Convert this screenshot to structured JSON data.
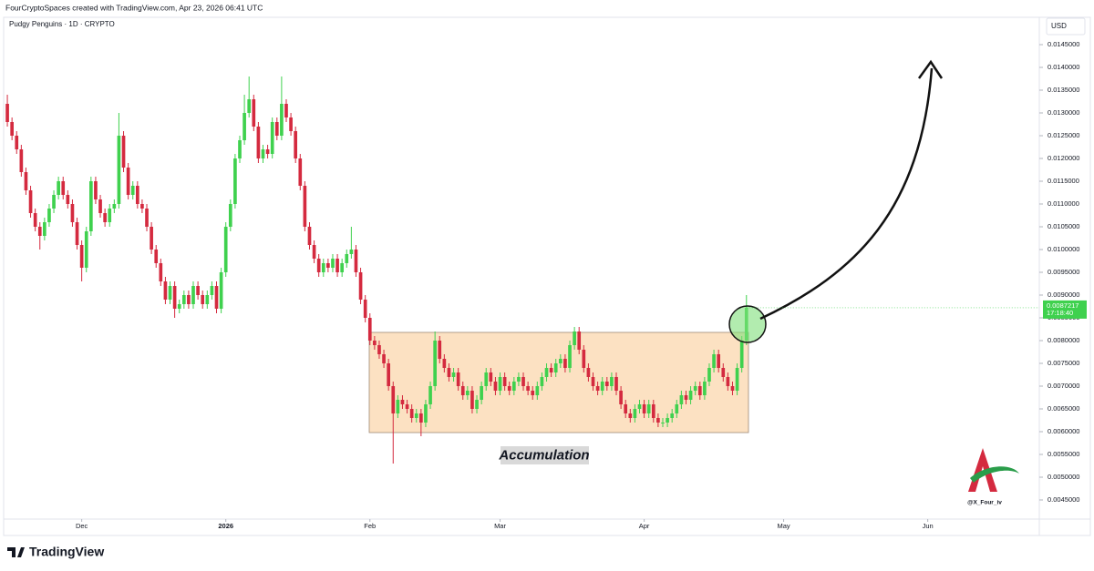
{
  "header": "FourCryptoSpaces created with TradingView.com, Apr 23, 2026 06:41 UTC",
  "footer": "TradingView",
  "chart_data": {
    "type": "candlestick",
    "title": "Pudgy Penguins · 1D · CRYPTO",
    "currency": "USD",
    "annotation": "Accumulation",
    "watermark": "@X_Four_iv",
    "up_color": "#3fd14e",
    "down_color": "#d42a3f",
    "last_price": {
      "value": 0.0087217,
      "label": "0.0087217"
    },
    "countdown": "17:18:40",
    "xlim": [
      -0.6,
      222
    ],
    "xticks": [
      {
        "value": 16,
        "label": "Dec"
      },
      {
        "value": 47,
        "label": "2026"
      },
      {
        "value": 78,
        "label": "Feb"
      },
      {
        "value": 106,
        "label": "Mar"
      },
      {
        "value": 137,
        "label": "Apr"
      },
      {
        "value": 167,
        "label": "May"
      },
      {
        "value": 198,
        "label": "Jun"
      }
    ],
    "ylim": [
      0.00408,
      0.0151
    ],
    "yticks": [
      {
        "value": 0.0045,
        "label": "0.0045000"
      },
      {
        "value": 0.005,
        "label": "0.0050000"
      },
      {
        "value": 0.0055,
        "label": "0.0055000"
      },
      {
        "value": 0.006,
        "label": "0.0060000"
      },
      {
        "value": 0.0065,
        "label": "0.0065000"
      },
      {
        "value": 0.007,
        "label": "0.0070000"
      },
      {
        "value": 0.0075,
        "label": "0.0075000"
      },
      {
        "value": 0.008,
        "label": "0.0080000"
      },
      {
        "value": 0.0085,
        "label": "0.0085000"
      },
      {
        "value": 0.009,
        "label": "0.0090000"
      },
      {
        "value": 0.0095,
        "label": "0.0095000"
      },
      {
        "value": 0.01,
        "label": "0.0100000"
      },
      {
        "value": 0.0105,
        "label": "0.0105000"
      },
      {
        "value": 0.011,
        "label": "0.0110000"
      },
      {
        "value": 0.0115,
        "label": "0.0115000"
      },
      {
        "value": 0.012,
        "label": "0.0120000"
      },
      {
        "value": 0.0125,
        "label": "0.0125000"
      },
      {
        "value": 0.013,
        "label": "0.0130000"
      },
      {
        "value": 0.0135,
        "label": "0.0135000"
      },
      {
        "value": 0.014,
        "label": "0.0140000"
      },
      {
        "value": 0.0145,
        "label": "0.0145000"
      }
    ],
    "open": [
      0.0132,
      0.0128,
      0.0125,
      0.0122,
      0.0117,
      0.0113,
      0.0108,
      0.0105,
      0.0103,
      0.0106,
      0.0109,
      0.0112,
      0.0115,
      0.0112,
      0.011,
      0.0106,
      0.0101,
      0.0096,
      0.0104,
      0.0115,
      0.0111,
      0.0108,
      0.0106,
      0.0109,
      0.011,
      0.0125,
      0.0118,
      0.0112,
      0.0114,
      0.011,
      0.0109,
      0.0105,
      0.01,
      0.0097,
      0.0093,
      0.0089,
      0.0092,
      0.0087,
      0.0088,
      0.009,
      0.0088,
      0.0092,
      0.009,
      0.0088,
      0.009,
      0.0092,
      0.0087,
      0.0095,
      0.0105,
      0.011,
      0.012,
      0.0124,
      0.013,
      0.0133,
      0.0127,
      0.012,
      0.0122,
      0.0121,
      0.0128,
      0.0125,
      0.0132,
      0.0129,
      0.0126,
      0.012,
      0.0114,
      0.0105,
      0.0101,
      0.0098,
      0.0095,
      0.0097,
      0.0096,
      0.0098,
      0.0095,
      0.0097,
      0.0099,
      0.01,
      0.0095,
      0.0089,
      0.0085,
      0.008,
      0.0079,
      0.0077,
      0.0075,
      0.007,
      0.0064,
      0.0067,
      0.0066,
      0.0065,
      0.0063,
      0.0064,
      0.0062,
      0.0066,
      0.007,
      0.008,
      0.0076,
      0.0074,
      0.0072,
      0.0073,
      0.007,
      0.0068,
      0.0069,
      0.0065,
      0.0067,
      0.007,
      0.0073,
      0.0071,
      0.0069,
      0.0072,
      0.007,
      0.0069,
      0.0071,
      0.0072,
      0.007,
      0.0069,
      0.0068,
      0.007,
      0.0072,
      0.0074,
      0.0073,
      0.0075,
      0.0076,
      0.0074,
      0.0079,
      0.0082,
      0.0078,
      0.0074,
      0.0072,
      0.007,
      0.0069,
      0.0071,
      0.007,
      0.0072,
      0.0069,
      0.0066,
      0.0064,
      0.0063,
      0.0065,
      0.0066,
      0.0064,
      0.0066,
      0.0063,
      0.0062,
      0.0062,
      0.0063,
      0.0064,
      0.0066,
      0.0068,
      0.0067,
      0.0069,
      0.007,
      0.0068,
      0.0071,
      0.0074,
      0.0077,
      0.0074,
      0.0072,
      0.007,
      0.0069,
      0.0074,
      0.008
    ],
    "high": [
      0.0134,
      0.0129,
      0.0126,
      0.0123,
      0.0118,
      0.0114,
      0.0109,
      0.0106,
      0.0107,
      0.011,
      0.0113,
      0.0116,
      0.0116,
      0.0113,
      0.0111,
      0.0107,
      0.0102,
      0.0105,
      0.0116,
      0.0116,
      0.0112,
      0.0109,
      0.011,
      0.0111,
      0.013,
      0.0126,
      0.0119,
      0.0115,
      0.0115,
      0.0111,
      0.011,
      0.0106,
      0.0101,
      0.0098,
      0.0094,
      0.0093,
      0.0093,
      0.0089,
      0.0091,
      0.0091,
      0.0093,
      0.0093,
      0.0091,
      0.0091,
      0.0093,
      0.0093,
      0.0096,
      0.0106,
      0.0111,
      0.0121,
      0.0125,
      0.0134,
      0.0138,
      0.0134,
      0.0128,
      0.0123,
      0.0123,
      0.0129,
      0.0129,
      0.0138,
      0.0133,
      0.013,
      0.0127,
      0.0121,
      0.0115,
      0.0106,
      0.0102,
      0.0099,
      0.0098,
      0.0098,
      0.0099,
      0.0099,
      0.0098,
      0.01,
      0.0105,
      0.0101,
      0.0096,
      0.009,
      0.0086,
      0.0081,
      0.008,
      0.0078,
      0.0076,
      0.0071,
      0.0068,
      0.0068,
      0.0067,
      0.0066,
      0.0065,
      0.0065,
      0.0067,
      0.0071,
      0.0082,
      0.0081,
      0.0077,
      0.0075,
      0.0074,
      0.0074,
      0.0071,
      0.007,
      0.007,
      0.0068,
      0.0071,
      0.0074,
      0.0074,
      0.0072,
      0.0073,
      0.0073,
      0.0071,
      0.0072,
      0.0073,
      0.0073,
      0.0071,
      0.007,
      0.0071,
      0.0073,
      0.0075,
      0.0075,
      0.0076,
      0.0077,
      0.0077,
      0.008,
      0.0083,
      0.0083,
      0.0079,
      0.0075,
      0.0073,
      0.0071,
      0.0072,
      0.0072,
      0.0073,
      0.0073,
      0.007,
      0.0067,
      0.0065,
      0.0066,
      0.0067,
      0.0067,
      0.0067,
      0.0067,
      0.0064,
      0.0063,
      0.0064,
      0.0065,
      0.0067,
      0.0069,
      0.0069,
      0.007,
      0.0071,
      0.0071,
      0.0072,
      0.0075,
      0.0078,
      0.0078,
      0.0075,
      0.0073,
      0.0071,
      0.0075,
      0.0081,
      0.009
    ],
    "low": [
      0.0127,
      0.0124,
      0.0121,
      0.0116,
      0.0112,
      0.0107,
      0.0104,
      0.01,
      0.0102,
      0.0105,
      0.0108,
      0.0111,
      0.0111,
      0.0109,
      0.0105,
      0.01,
      0.0093,
      0.0095,
      0.0103,
      0.011,
      0.0107,
      0.0105,
      0.0105,
      0.0108,
      0.0109,
      0.0117,
      0.0111,
      0.0111,
      0.0109,
      0.0108,
      0.0104,
      0.0099,
      0.0096,
      0.0092,
      0.0088,
      0.0088,
      0.0085,
      0.0086,
      0.0087,
      0.0087,
      0.0087,
      0.0089,
      0.0087,
      0.0087,
      0.0089,
      0.0086,
      0.0086,
      0.0094,
      0.0104,
      0.0109,
      0.0119,
      0.0123,
      0.0129,
      0.0126,
      0.0119,
      0.0119,
      0.012,
      0.012,
      0.0124,
      0.0124,
      0.0128,
      0.0125,
      0.0119,
      0.0113,
      0.0104,
      0.01,
      0.0097,
      0.0094,
      0.0094,
      0.0095,
      0.0095,
      0.0094,
      0.0094,
      0.0096,
      0.0098,
      0.0094,
      0.0088,
      0.0084,
      0.0079,
      0.0078,
      0.0076,
      0.0074,
      0.0069,
      0.0053,
      0.0063,
      0.0065,
      0.0064,
      0.0062,
      0.0062,
      0.0059,
      0.0061,
      0.0065,
      0.0069,
      0.0075,
      0.0073,
      0.0071,
      0.0071,
      0.0069,
      0.0067,
      0.0067,
      0.0064,
      0.0064,
      0.0066,
      0.0069,
      0.007,
      0.0068,
      0.0068,
      0.0069,
      0.0068,
      0.0068,
      0.007,
      0.0069,
      0.0068,
      0.0067,
      0.0067,
      0.0069,
      0.0071,
      0.0072,
      0.0072,
      0.0074,
      0.0073,
      0.0073,
      0.0078,
      0.0077,
      0.0073,
      0.0071,
      0.0069,
      0.0068,
      0.0068,
      0.0069,
      0.0069,
      0.0068,
      0.0065,
      0.0063,
      0.0062,
      0.0062,
      0.0064,
      0.0063,
      0.0063,
      0.0062,
      0.0061,
      0.0061,
      0.0061,
      0.0062,
      0.0063,
      0.0065,
      0.0066,
      0.0066,
      0.0068,
      0.0067,
      0.0067,
      0.007,
      0.0073,
      0.0073,
      0.0071,
      0.0069,
      0.0068,
      0.0068,
      0.0073,
      0.0079
    ],
    "close": [
      0.0128,
      0.0125,
      0.0122,
      0.0117,
      0.0113,
      0.0108,
      0.0105,
      0.0103,
      0.0106,
      0.0109,
      0.0112,
      0.0115,
      0.0112,
      0.011,
      0.0106,
      0.0101,
      0.0096,
      0.0104,
      0.0115,
      0.0111,
      0.0108,
      0.0106,
      0.0109,
      0.011,
      0.0125,
      0.0118,
      0.0112,
      0.0114,
      0.011,
      0.0109,
      0.0105,
      0.01,
      0.0097,
      0.0093,
      0.0089,
      0.0092,
      0.0087,
      0.0088,
      0.009,
      0.0088,
      0.0092,
      0.009,
      0.0088,
      0.009,
      0.0092,
      0.0087,
      0.0095,
      0.0105,
      0.011,
      0.012,
      0.0124,
      0.013,
      0.0133,
      0.0127,
      0.012,
      0.0122,
      0.0121,
      0.0128,
      0.0125,
      0.0132,
      0.0129,
      0.0126,
      0.012,
      0.0114,
      0.0105,
      0.0101,
      0.0098,
      0.0095,
      0.0097,
      0.0096,
      0.0098,
      0.0095,
      0.0097,
      0.0099,
      0.01,
      0.0095,
      0.0089,
      0.0085,
      0.008,
      0.0079,
      0.0077,
      0.0075,
      0.007,
      0.0064,
      0.0067,
      0.0066,
      0.0065,
      0.0063,
      0.0064,
      0.0062,
      0.0066,
      0.007,
      0.008,
      0.0076,
      0.0074,
      0.0072,
      0.0073,
      0.007,
      0.0068,
      0.0069,
      0.0065,
      0.0067,
      0.007,
      0.0073,
      0.0071,
      0.0069,
      0.0072,
      0.007,
      0.0069,
      0.0071,
      0.0072,
      0.007,
      0.0069,
      0.0068,
      0.007,
      0.0072,
      0.0074,
      0.0073,
      0.0075,
      0.0076,
      0.0074,
      0.0079,
      0.0082,
      0.0078,
      0.0074,
      0.0072,
      0.007,
      0.0069,
      0.0071,
      0.007,
      0.0072,
      0.0069,
      0.0066,
      0.0064,
      0.0063,
      0.0065,
      0.0066,
      0.0064,
      0.0066,
      0.0063,
      0.0062,
      0.0062,
      0.0063,
      0.0064,
      0.0066,
      0.0068,
      0.0067,
      0.0069,
      0.007,
      0.0068,
      0.0071,
      0.0074,
      0.0077,
      0.0074,
      0.0072,
      0.007,
      0.0069,
      0.0074,
      0.008,
      0.0087217
    ]
  }
}
